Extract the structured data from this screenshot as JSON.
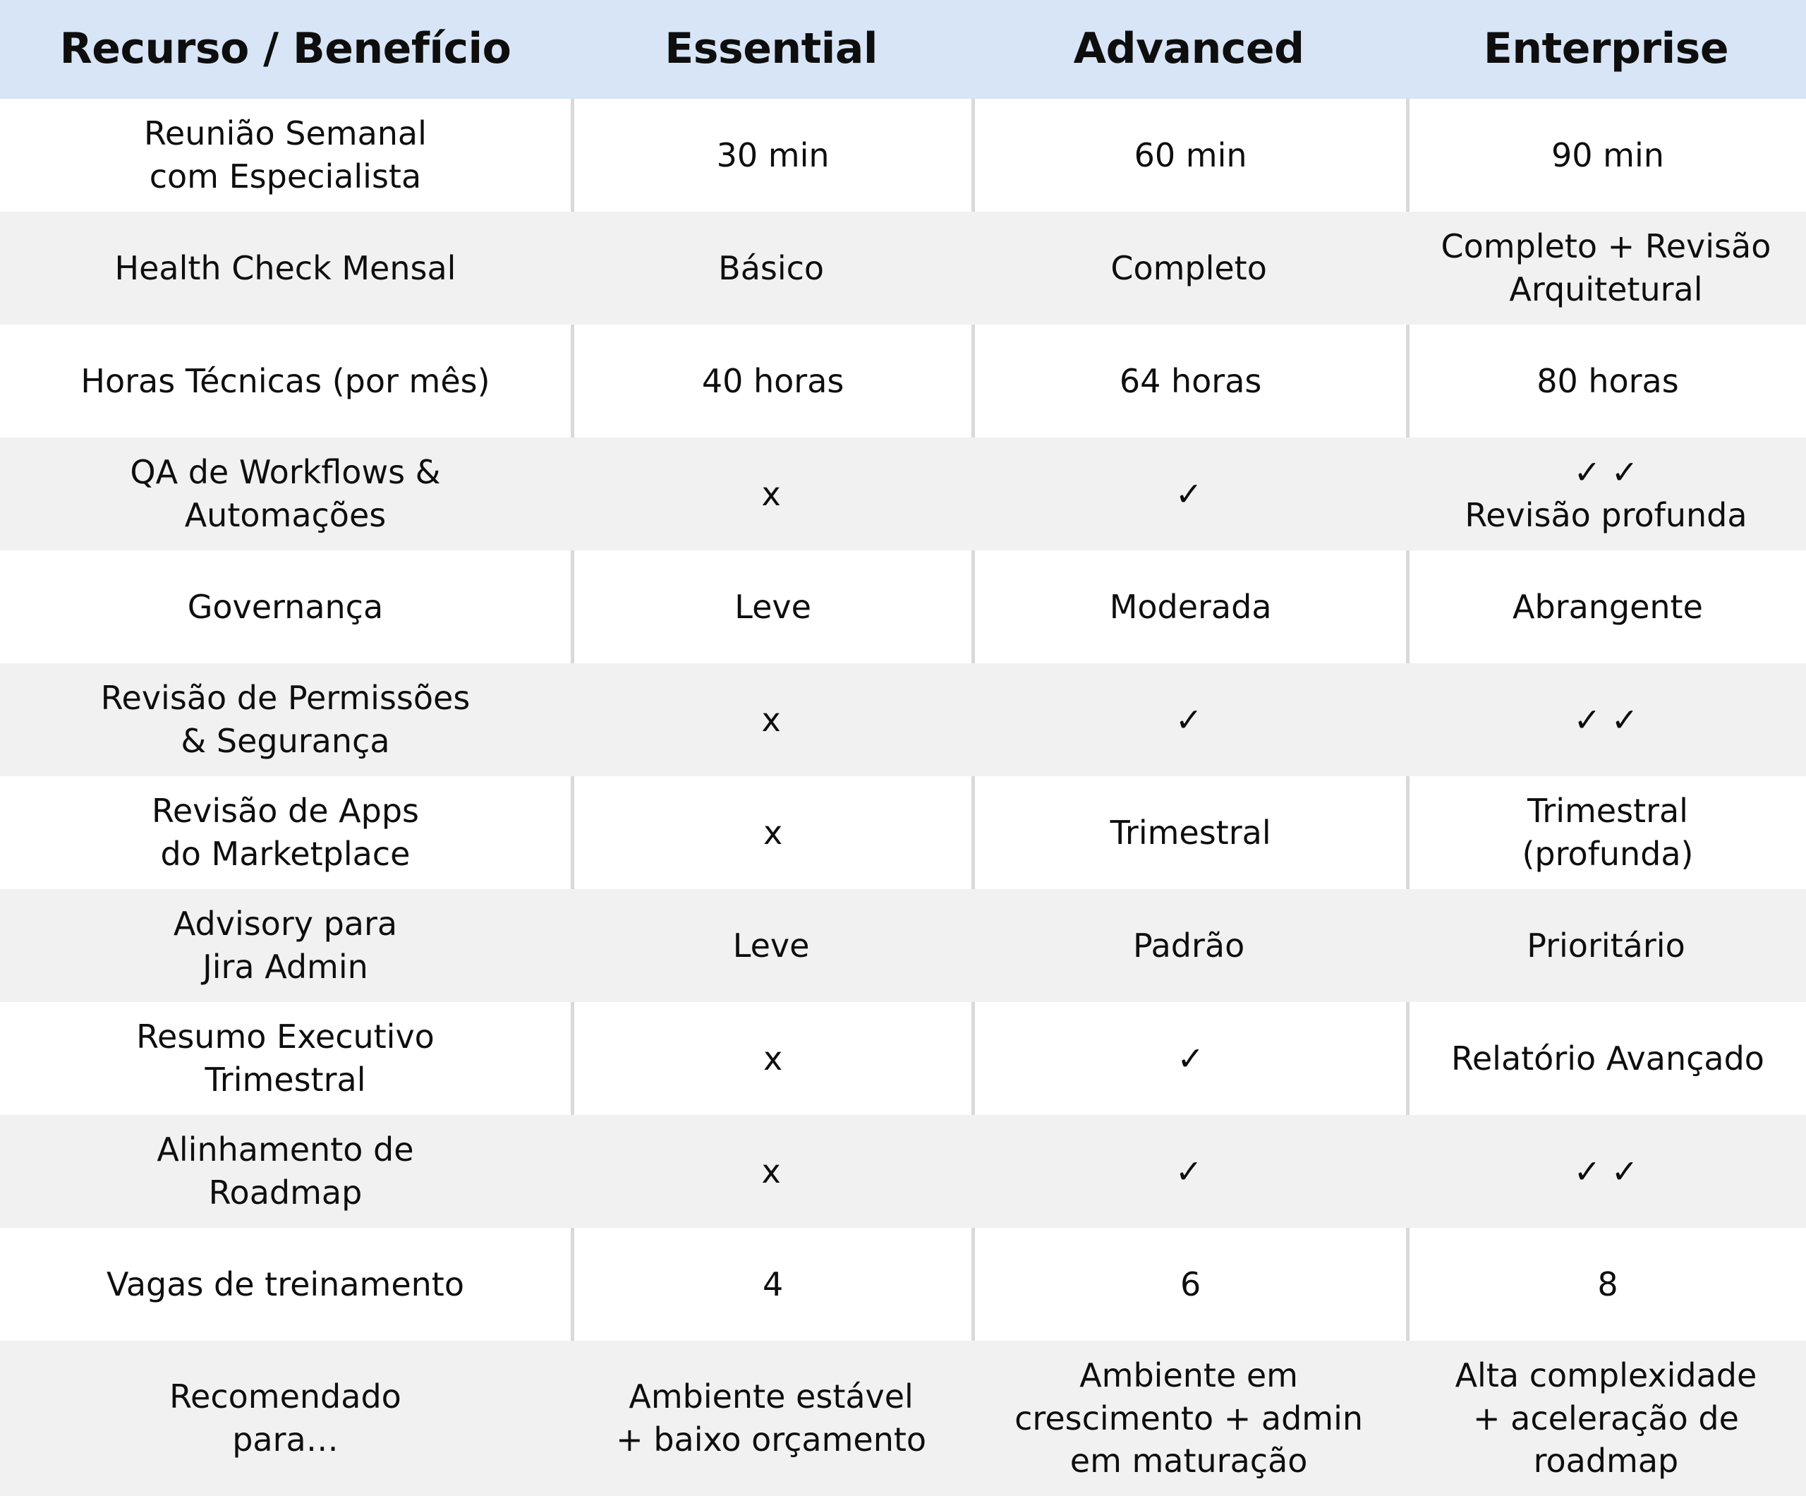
{
  "colors": {
    "header_bg": "#d8e5f6",
    "row_bg": "#ffffff",
    "row_alt_bg": "#f1f1f1",
    "divider": "#d9d9d9",
    "text": "#0e0e0e"
  },
  "icons": {
    "check": "✓",
    "double_check": "✓ ✓",
    "cross": "x"
  },
  "table": {
    "columns": {
      "feature": "Recurso / Benefício",
      "essential": "Essential",
      "advanced": "Advanced",
      "enterprise": "Enterprise"
    },
    "rows": [
      {
        "feature": "Reunião Semanal\ncom Especialista",
        "essential": "30 min",
        "advanced": "60 min",
        "enterprise": "90 min"
      },
      {
        "feature": "Health Check Mensal",
        "essential": "Básico",
        "advanced": "Completo",
        "enterprise": "Completo + Revisão\nArquitetural"
      },
      {
        "feature": "Horas Técnicas (por mês)",
        "essential": "40 horas",
        "advanced": "64 horas",
        "enterprise": "80 horas"
      },
      {
        "feature": "QA de Workflows &\nAutomações",
        "essential": "x",
        "advanced": "✓",
        "enterprise": "✓ ✓\nRevisão profunda"
      },
      {
        "feature": "Governança",
        "essential": "Leve",
        "advanced": "Moderada",
        "enterprise": "Abrangente"
      },
      {
        "feature": "Revisão de Permissões\n& Segurança",
        "essential": "x",
        "advanced": "✓",
        "enterprise": "✓ ✓"
      },
      {
        "feature": "Revisão de Apps\ndo Marketplace",
        "essential": "x",
        "advanced": "Trimestral",
        "enterprise": "Trimestral\n(profunda)"
      },
      {
        "feature": "Advisory para\nJira Admin",
        "essential": "Leve",
        "advanced": "Padrão",
        "enterprise": "Prioritário"
      },
      {
        "feature": "Resumo Executivo\nTrimestral",
        "essential": "x",
        "advanced": "✓",
        "enterprise": "Relatório Avançado"
      },
      {
        "feature": "Alinhamento de\nRoadmap",
        "essential": "x",
        "advanced": "✓",
        "enterprise": "✓ ✓"
      },
      {
        "feature": "Vagas de treinamento",
        "essential": "4",
        "advanced": "6",
        "enterprise": "8"
      },
      {
        "feature": "Recomendado\npara…",
        "essential": "Ambiente estável\n+ baixo orçamento",
        "advanced": "Ambiente em\ncrescimento + admin\nem maturação",
        "enterprise": "Alta complexidade\n+ aceleração de\nroadmap"
      }
    ]
  }
}
